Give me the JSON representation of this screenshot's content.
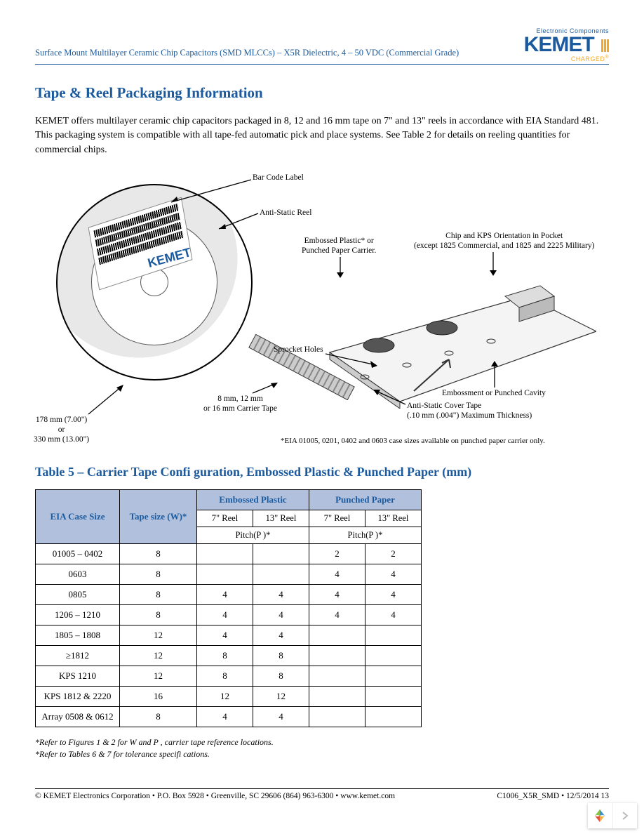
{
  "header": {
    "doc_line": "Surface Mount Multilayer Ceramic Chip Capacitors (SMD MLCCs) – X5R Dielectric, 4 – 50 VDC (Commercial Grade)",
    "logo_sub": "Electronic Components",
    "logo_main": "KEMET",
    "logo_charged": "CHARGED"
  },
  "section_title": "Tape & Reel Packaging Information",
  "intro_para": "KEMET offers multilayer ceramic chip capacitors packaged in 8, 12 and 16 mm tape on 7\" and 13\" reels in accordance with EIA Standard 481. This packaging system is compatible with all tape-fed automatic pick and place systems. See Table 2 for details on reeling quantities for commercial chips.",
  "diagram": {
    "bar_code_label": "Bar Code Label",
    "anti_static_reel": "Anti-Static Reel",
    "embossed_or_punched": "Embossed Plastic* or\nPunched Paper Carrier.",
    "chip_orientation": "Chip and KPS Orientation in Pocket\n(except 1825 Commercial, and 1825 and 2225 Military)",
    "sprocket_holes": "Sprocket Holes",
    "embossment_cavity": "Embossment or Punched Cavity",
    "carrier_tape_sizes": "8 mm, 12 mm\nor 16 mm Carrier Tape",
    "anti_static_cover": "Anti-Static Cover Tape\n(.10 mm (.004\") Maximum Thickness)",
    "reel_dims": "178 mm (7.00\")\nor\n330 mm (13.00\")",
    "eia_note": "*EIA 01005, 0201, 0402 and 0603 case sizes available on punched paper carrier only.",
    "kemet_mark": "KEMET"
  },
  "table_title": "Table 5 – Carrier Tape Confi guration, Embossed Plastic & Punched Paper (mm)",
  "table": {
    "h_case": "EIA Case Size",
    "h_tape": "Tape size (W)*",
    "h_embossed": "Embossed Plastic",
    "h_punched": "Punched Paper",
    "h_7reel": "7\" Reel",
    "h_13reel": "13\" Reel",
    "h_pitch": "Pitch(P  )*",
    "rows": [
      {
        "case": "01005 – 0402",
        "w": "8",
        "e7": "",
        "e13": "",
        "p7": "2",
        "p13": "2"
      },
      {
        "case": "0603",
        "w": "8",
        "e7": "",
        "e13": "",
        "p7": "4",
        "p13": "4"
      },
      {
        "case": "0805",
        "w": "8",
        "e7": "4",
        "e13": "4",
        "p7": "4",
        "p13": "4"
      },
      {
        "case": "1206 – 1210",
        "w": "8",
        "e7": "4",
        "e13": "4",
        "p7": "4",
        "p13": "4"
      },
      {
        "case": "1805 – 1808",
        "w": "12",
        "e7": "4",
        "e13": "4",
        "p7": "",
        "p13": ""
      },
      {
        "case": "≥1812",
        "w": "12",
        "e7": "8",
        "e13": "8",
        "p7": "",
        "p13": ""
      },
      {
        "case": "KPS 1210",
        "w": "12",
        "e7": "8",
        "e13": "8",
        "p7": "",
        "p13": ""
      },
      {
        "case": "KPS 1812 & 2220",
        "w": "16",
        "e7": "12",
        "e13": "12",
        "p7": "",
        "p13": ""
      },
      {
        "case": "Array 0508 & 0612",
        "w": "8",
        "e7": "4",
        "e13": "4",
        "p7": "",
        "p13": ""
      }
    ]
  },
  "footnotes": {
    "f1": "*Refer to Figures 1 & 2 for W and P   , carrier tape reference locations.",
    "f2": "*Refer to Tables 6 & 7 for tolerance specifi cations."
  },
  "footer": {
    "left": "© KEMET Electronics Corporation • P.O. Box 5928 • Greenville, SC 29606 (864) 963-6300 • www.kemet.com",
    "right": "C1006_X5R_SMD • 12/5/2014 13"
  },
  "colors": {
    "brand_blue": "#1b5a9e",
    "brand_orange": "#f7a823",
    "table_header_bg": "#b1c1dd",
    "pager_c1": "#8bc34a",
    "pager_c2": "#3f91d0",
    "pager_c3": "#f6b23a",
    "pager_c4": "#e6533c"
  }
}
